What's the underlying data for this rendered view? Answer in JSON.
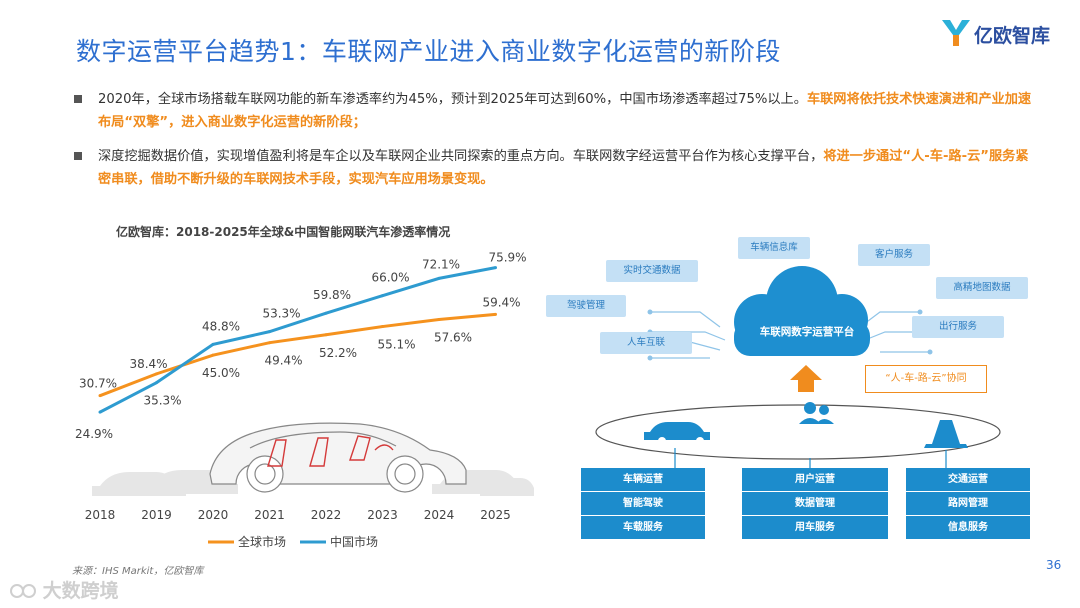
{
  "title": "数字运营平台趋势1：车联网产业进入商业数字化运营的新阶段",
  "logo": {
    "icon": "yiou-logo-icon",
    "text": "亿欧智库"
  },
  "bullets": [
    {
      "normal": "2020年，全球市场搭载车联网功能的新车渗透率约为45%，预计到2025年可达到60%，中国市场渗透率超过75%以上。",
      "highlight": "车联网将依托技术快速演进和产业加速布局“双擎”，进入商业数字化运营的新阶段；"
    },
    {
      "normal": "深度挖掘数据价值，实现增值盈利将是车企以及车联网企业共同探索的重点方向。车联网数字经运营平台作为核心支撑平台，",
      "highlight": "将进一步通过“人-车-路-云”服务紧密串联，借助不断升级的车联网技术手段，实现汽车应用场景变现。"
    }
  ],
  "chart_data": {
    "type": "line",
    "title": "亿欧智库：2018-2025年全球&中国智能网联汽车渗透率情况",
    "categories": [
      "2018",
      "2019",
      "2020",
      "2021",
      "2022",
      "2023",
      "2024",
      "2025"
    ],
    "series": [
      {
        "name": "全球市场",
        "color": "#f5921e",
        "values": [
          30.7,
          38.4,
          45.0,
          49.4,
          52.2,
          55.1,
          57.6,
          59.4
        ],
        "labels": [
          "30.7%",
          "38.4%",
          "45.0%",
          "49.4%",
          "52.2%",
          "55.1%",
          "57.6%",
          "59.4%"
        ]
      },
      {
        "name": "中国市场",
        "color": "#2e9bd0",
        "values": [
          24.9,
          35.3,
          48.8,
          53.3,
          59.8,
          66.0,
          72.1,
          75.9
        ],
        "labels": [
          "24.9%",
          "35.3%",
          "48.8%",
          "53.3%",
          "59.8%",
          "66.0%",
          "72.1%",
          "75.9%"
        ]
      }
    ],
    "ylim": [
      20,
      80
    ],
    "grid": false,
    "legend": "bottom"
  },
  "source": "来源：IHS Markit，亿欧智库",
  "watermark": "大数跨境",
  "page_number": "36",
  "diagram": {
    "cloud_label": "车联网数字运营平台",
    "chips": [
      "车辆信息库",
      "客户服务",
      "实时交通数据",
      "高精地图数据",
      "驾驶管理",
      "出行服务",
      "人车互联"
    ],
    "coop_label": "“人-车-路-云”协同",
    "columns": [
      {
        "items": [
          "车辆运营",
          "智能驾驶",
          "车载服务"
        ]
      },
      {
        "items": [
          "用户运营",
          "数据管理",
          "用车服务"
        ]
      },
      {
        "items": [
          "交通运营",
          "路网管理",
          "信息服务"
        ]
      }
    ]
  }
}
